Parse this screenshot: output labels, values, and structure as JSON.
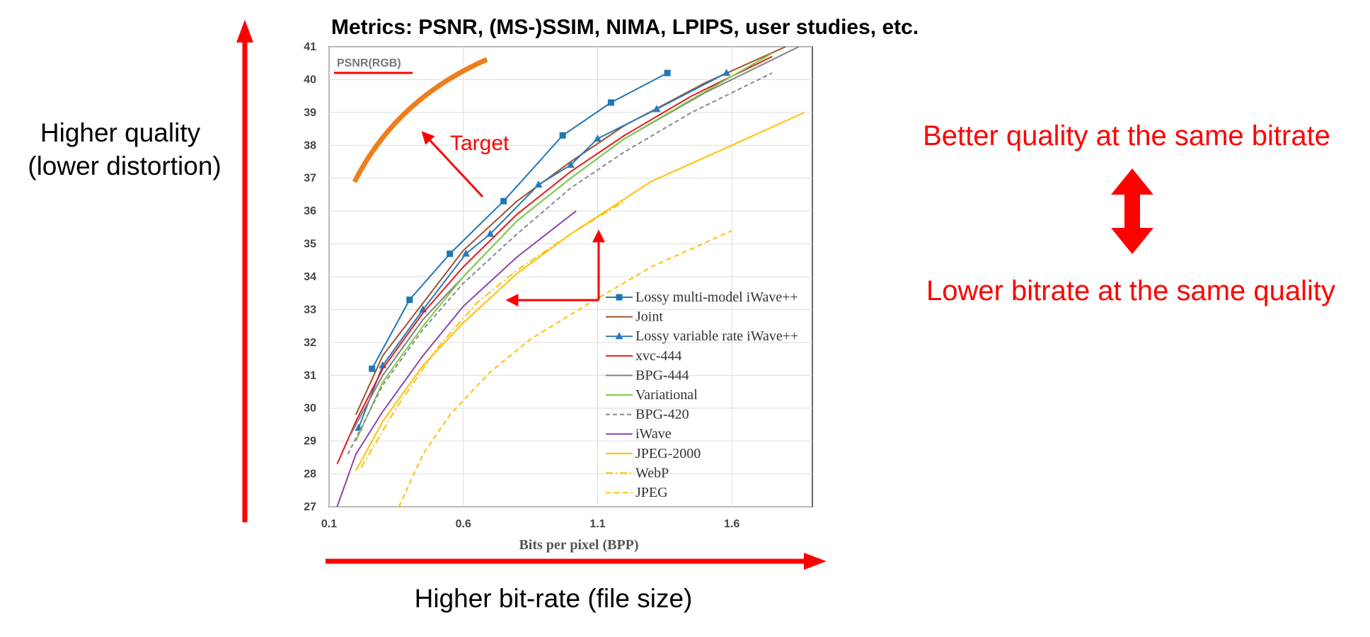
{
  "slide": {
    "title": "Metrics: PSNR, (MS-)SSIM, NIMA, LPIPS, user studies, etc.",
    "y_side_label_line1": "Higher quality",
    "y_side_label_line2": "(lower distortion)",
    "x_bottom_label": "Higher bit-rate (file size)",
    "right_top": "Better quality at the same bitrate",
    "right_bottom": "Lower bitrate at the same quality",
    "target_label": "Target",
    "accent_color": "#ff0000",
    "target_curve_color": "#f07d1a"
  },
  "chart_data": {
    "type": "line",
    "metric_tag": "PSNR(RGB)",
    "xlabel": "Bits per pixel (BPP)",
    "ylabel": "",
    "xlim": [
      0.1,
      1.9
    ],
    "ylim": [
      27,
      41
    ],
    "x_ticks": [
      0.1,
      0.6,
      1.1,
      1.6
    ],
    "y_ticks": [
      27,
      28,
      29,
      30,
      31,
      32,
      33,
      34,
      35,
      36,
      37,
      38,
      39,
      40,
      41
    ],
    "grid": true,
    "legend_position": "lower-right",
    "series": [
      {
        "name": "Lossy multi-model iWave++",
        "color": "#1f77b4",
        "dash": "solid",
        "marker": "square",
        "x": [
          0.26,
          0.4,
          0.55,
          0.75,
          0.97,
          1.15,
          1.36
        ],
        "y": [
          31.2,
          33.3,
          34.7,
          36.3,
          38.3,
          39.3,
          40.2
        ]
      },
      {
        "name": "Joint",
        "color": "#a0522d",
        "dash": "solid",
        "marker": "none",
        "x": [
          0.2,
          0.3,
          0.45,
          0.6,
          0.8,
          1.0,
          1.2,
          1.5,
          1.8
        ],
        "y": [
          29.8,
          31.6,
          33.2,
          34.8,
          36.3,
          37.5,
          38.6,
          39.9,
          41.0
        ]
      },
      {
        "name": "Lossy variable rate iWave++",
        "color": "#2a7ab8",
        "dash": "solid",
        "marker": "triangle",
        "x": [
          0.21,
          0.3,
          0.45,
          0.61,
          0.7,
          0.88,
          1.0,
          1.1,
          1.32,
          1.58
        ],
        "y": [
          29.4,
          31.3,
          33.0,
          34.7,
          35.3,
          36.8,
          37.4,
          38.2,
          39.1,
          40.2
        ]
      },
      {
        "name": "xvc-444",
        "color": "#e31a1c",
        "dash": "solid",
        "marker": "none",
        "x": [
          0.13,
          0.2,
          0.3,
          0.45,
          0.6,
          0.8,
          1.0,
          1.2,
          1.45,
          1.75
        ],
        "y": [
          28.3,
          29.6,
          31.2,
          32.9,
          34.3,
          35.9,
          37.2,
          38.3,
          39.5,
          40.7
        ]
      },
      {
        "name": "BPG-444",
        "color": "#808080",
        "dash": "solid",
        "marker": "none",
        "x": [
          0.18,
          0.3,
          0.45,
          0.6,
          0.8,
          1.0,
          1.2,
          1.5,
          1.85
        ],
        "y": [
          29.2,
          31.0,
          32.7,
          34.0,
          35.7,
          37.0,
          38.2,
          39.6,
          41.0
        ]
      },
      {
        "name": "Variational",
        "color": "#7ccd4a",
        "dash": "solid",
        "marker": "none",
        "x": [
          0.2,
          0.3,
          0.45,
          0.6,
          0.8,
          1.0,
          1.2,
          1.45,
          1.75
        ],
        "y": [
          29.0,
          30.8,
          32.5,
          34.0,
          35.7,
          37.0,
          38.2,
          39.4,
          40.8
        ]
      },
      {
        "name": "BPG-420",
        "color": "#888888",
        "dash": "6,4",
        "marker": "none",
        "x": [
          0.17,
          0.3,
          0.45,
          0.6,
          0.8,
          1.0,
          1.2,
          1.45,
          1.75
        ],
        "y": [
          28.6,
          30.7,
          32.4,
          33.8,
          35.3,
          36.7,
          37.8,
          39.0,
          40.2
        ]
      },
      {
        "name": "iWave",
        "color": "#8e44ad",
        "dash": "solid",
        "marker": "none",
        "x": [
          0.13,
          0.2,
          0.3,
          0.45,
          0.6,
          0.8,
          1.02
        ],
        "y": [
          27.0,
          28.6,
          29.9,
          31.6,
          33.1,
          34.6,
          36.0
        ]
      },
      {
        "name": "JPEG-2000",
        "color": "#ffc000",
        "dash": "solid",
        "marker": "none",
        "x": [
          0.2,
          0.3,
          0.45,
          0.6,
          0.8,
          1.0,
          1.3,
          1.6,
          1.87
        ],
        "y": [
          28.1,
          29.6,
          31.3,
          32.6,
          34.1,
          35.3,
          36.9,
          38.0,
          39.0
        ]
      },
      {
        "name": "WebP",
        "color": "#ffc000",
        "dash": "10,4,2,4",
        "marker": "none",
        "x": [
          0.22,
          0.35,
          0.5,
          0.65,
          0.8,
          1.0,
          1.2
        ],
        "y": [
          28.2,
          30.0,
          31.8,
          33.2,
          34.2,
          35.3,
          36.3
        ]
      },
      {
        "name": "JPEG",
        "color": "#ffc000",
        "dash": "7,5",
        "marker": "none",
        "x": [
          0.36,
          0.45,
          0.55,
          0.7,
          0.85,
          1.05,
          1.3,
          1.6
        ],
        "y": [
          27.0,
          28.6,
          29.8,
          31.1,
          32.1,
          33.1,
          34.3,
          35.4
        ]
      }
    ]
  }
}
